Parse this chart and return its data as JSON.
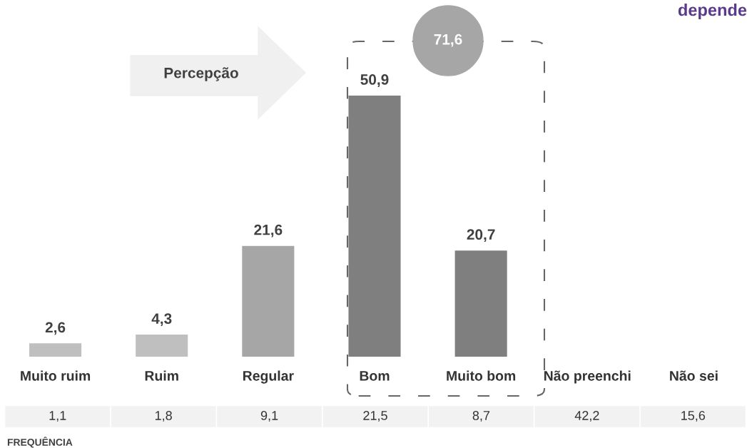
{
  "chart_data": {
    "type": "bar",
    "categories": [
      "Muito ruim",
      "Ruim",
      "Regular",
      "Bom",
      "Muito bom",
      "Não preenchi",
      "Não sei"
    ],
    "values": [
      2.6,
      4.3,
      21.6,
      50.9,
      20.7,
      null,
      null
    ],
    "colors": [
      "#bfbfbf",
      "#bfbfbf",
      "#a6a6a6",
      "#7f7f7f",
      "#7f7f7f",
      "#7f7f7f",
      "#7f7f7f"
    ],
    "value_labels": [
      "2,6",
      "4,3",
      "21,6",
      "50,9",
      "20,7",
      null,
      null
    ],
    "grid": false,
    "legend": false,
    "tick_labels": "x",
    "annotations": [
      "depende",
      "Percepção",
      "71,6",
      "FREQUÊNCIA",
      "1,1",
      "1,8",
      "9,1",
      "21,5",
      "8,7",
      "42,2",
      "15,6"
    ]
  }
}
